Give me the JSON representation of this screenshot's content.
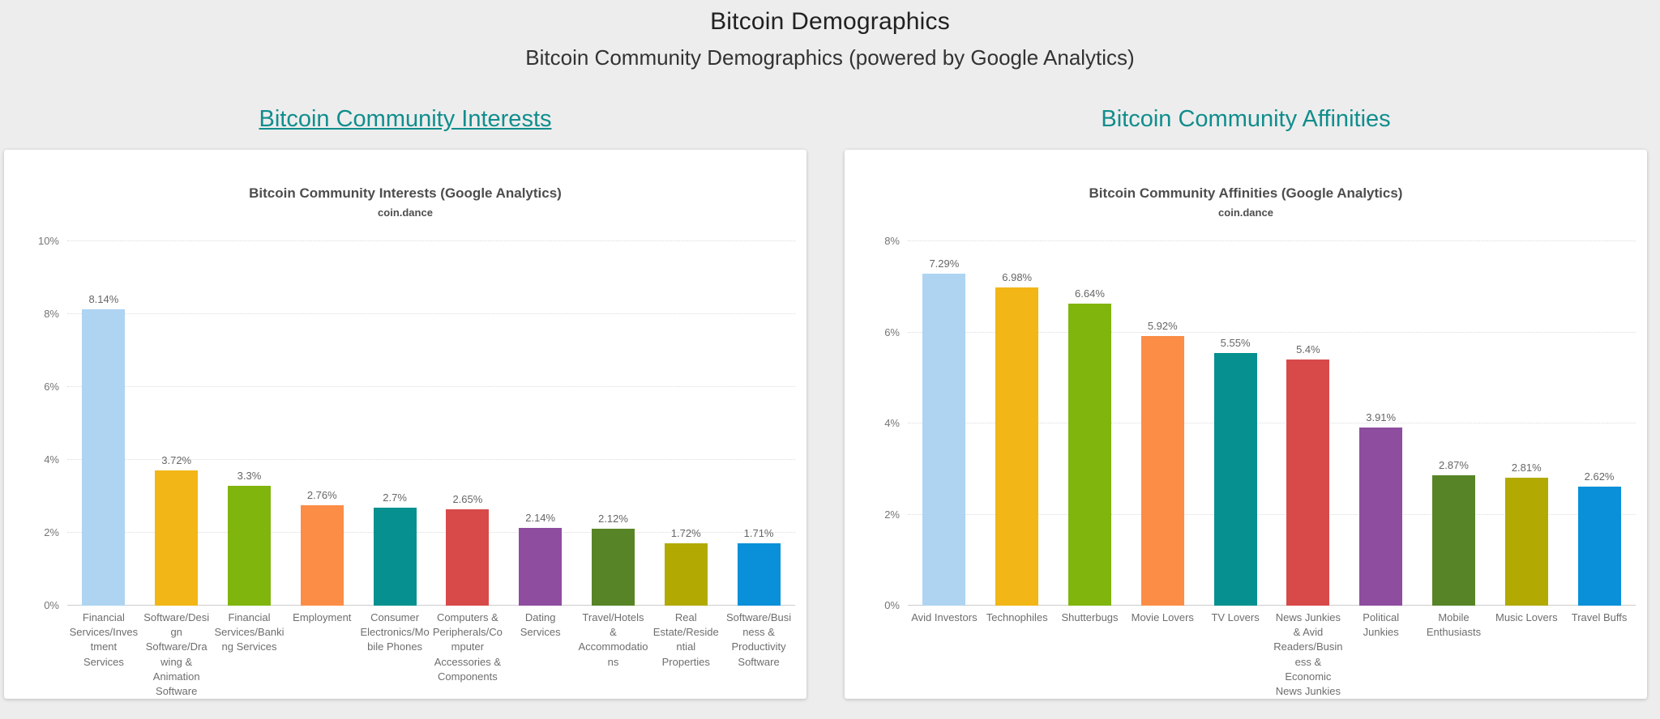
{
  "page": {
    "title": "Bitcoin Demographics",
    "subtitle": "Bitcoin Community Demographics (powered by Google Analytics)",
    "background_color": "#ededed",
    "accent_color": "#118d8d"
  },
  "sections": [
    {
      "heading": "Bitcoin Community Interests"
    },
    {
      "heading": "Bitcoin Community Affinities"
    }
  ],
  "chart_data": [
    {
      "type": "bar",
      "title": "Bitcoin Community Interests (Google Analytics)",
      "subtitle": "coin.dance",
      "categories": [
        "Financial\nServices/Inves\ntment\nServices",
        "Software/Desi\ngn\nSoftware/Dra\nwing &\nAnimation\nSoftware",
        "Financial\nServices/Banki\nng Services",
        "Employment",
        "Consumer\nElectronics/Mo\nbile Phones",
        "Computers &\nPeripherals/Co\nmputer\nAccessories &\nComponents",
        "Dating\nServices",
        "Travel/Hotels\n&\nAccommodatio\nns",
        "Real\nEstate/Reside\nntial\nProperties",
        "Software/Busi\nness &\nProductivity\nSoftware"
      ],
      "values": [
        8.14,
        3.72,
        3.3,
        2.76,
        2.7,
        2.65,
        2.14,
        2.12,
        1.72,
        1.71
      ],
      "value_labels": [
        "8.14%",
        "3.72%",
        "3.3%",
        "2.76%",
        "2.7%",
        "2.65%",
        "2.14%",
        "2.12%",
        "1.72%",
        "1.71%"
      ],
      "bar_colors": [
        "#aed4f2",
        "#f2b616",
        "#80b50e",
        "#fb8d47",
        "#069090",
        "#d84a4a",
        "#8e4d9e",
        "#578426",
        "#b2aa02",
        "#0990d8"
      ],
      "xlabel": "",
      "ylabel": "",
      "ylim": [
        0,
        10
      ],
      "yticks": [
        "0%",
        "2%",
        "4%",
        "6%",
        "8%",
        "10%"
      ],
      "grid": true,
      "legend": "none"
    },
    {
      "type": "bar",
      "title": "Bitcoin Community Affinities (Google Analytics)",
      "subtitle": "coin.dance",
      "categories": [
        "Avid Investors",
        "Technophiles",
        "Shutterbugs",
        "Movie Lovers",
        "TV Lovers",
        "News Junkies\n& Avid\nReaders/Busin\ness &\nEconomic\nNews Junkies",
        "Political\nJunkies",
        "Mobile\nEnthusiasts",
        "Music Lovers",
        "Travel Buffs"
      ],
      "values": [
        7.29,
        6.98,
        6.64,
        5.92,
        5.55,
        5.4,
        3.91,
        2.87,
        2.81,
        2.62
      ],
      "value_labels": [
        "7.29%",
        "6.98%",
        "6.64%",
        "5.92%",
        "5.55%",
        "5.4%",
        "3.91%",
        "2.87%",
        "2.81%",
        "2.62%"
      ],
      "bar_colors": [
        "#aed4f2",
        "#f2b616",
        "#80b50e",
        "#fb8d47",
        "#069090",
        "#d84a4a",
        "#8e4d9e",
        "#578426",
        "#b2aa02",
        "#0990d8"
      ],
      "xlabel": "",
      "ylabel": "",
      "ylim": [
        0,
        8
      ],
      "yticks": [
        "0%",
        "2%",
        "4%",
        "6%",
        "8%"
      ],
      "grid": true,
      "legend": "none"
    }
  ]
}
